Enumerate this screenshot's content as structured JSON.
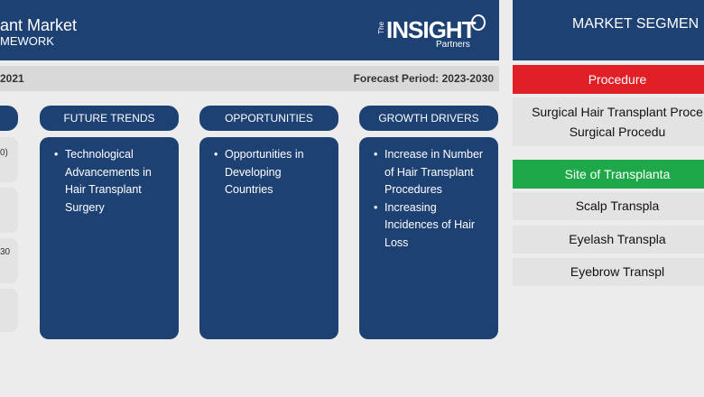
{
  "banner": {
    "title": "ant Market",
    "subtitle": "MEWORK",
    "logo": {
      "prefix": "The",
      "name": "INSIGHT",
      "sub": "Partners"
    }
  },
  "period": {
    "left": "2021",
    "right": "Forecast Period: 2023-2030"
  },
  "left_stubs": [
    "0)",
    "30"
  ],
  "columns": [
    {
      "title": "FUTURE TRENDS",
      "items": [
        "Technological Advancements in Hair Transplant Surgery"
      ]
    },
    {
      "title": "OPPORTUNITIES",
      "items": [
        "Opportunities in Developing Countries"
      ]
    },
    {
      "title": "GROWTH DRIVERS",
      "items": [
        "Increase in Number of Hair Transplant Procedures",
        "Increasing Incidences of Hair Loss"
      ]
    }
  ],
  "segmentation": {
    "title": "MARKET SEGMEN",
    "groups": [
      {
        "label": "Procedure",
        "color": "#e11f26",
        "items": [
          "Surgical Hair Transplant Proce",
          "Surgical Procedu"
        ]
      },
      {
        "label": "Site of Transplanta",
        "color": "#1fa84a",
        "items": [
          "Scalp Transpla",
          "Eyelash Transpla",
          "Eyebrow Transpl"
        ]
      }
    ]
  }
}
